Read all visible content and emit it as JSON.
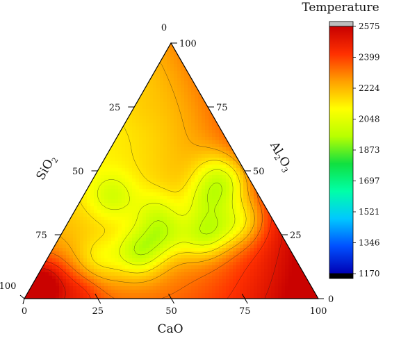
{
  "chart_data": {
    "type": "ternary-contour",
    "colorbar": {
      "title": "Temperature",
      "ticks": [
        "2575",
        "2399",
        "2224",
        "2048",
        "1873",
        "1697",
        "1521",
        "1346",
        "1170"
      ],
      "min": 1170,
      "max": 2575,
      "over_color": "#bdbdbd",
      "under_color": "#000000",
      "stops": [
        "#0000b4",
        "#0050ff",
        "#00c8ff",
        "#00ffa8",
        "#10e040",
        "#b8ff00",
        "#ffff00",
        "#ffa000",
        "#ff3000",
        "#c80000"
      ]
    },
    "axes": {
      "bottom": {
        "title": "CaO",
        "ticks": [
          "0",
          "25",
          "50",
          "75",
          "100"
        ]
      },
      "left": {
        "title": "SiO",
        "subscript": "2",
        "ticks": [
          "0",
          "25",
          "50",
          "75",
          "100"
        ]
      },
      "right": {
        "title": "Al",
        "sub1": "2",
        "mid": "O",
        "sub2": "3",
        "ticks": [
          "0",
          "25",
          "50",
          "75",
          "100"
        ]
      }
    },
    "peaks": [
      {
        "cao": 10,
        "sio2": 50,
        "al2o3": 40,
        "value": -150
      },
      {
        "cao": 18,
        "sio2": 67,
        "al2o3": 15,
        "value": -120
      },
      {
        "cao": 30,
        "sio2": 52,
        "al2o3": 18,
        "value": -240
      },
      {
        "cao": 35,
        "sio2": 40,
        "al2o3": 25,
        "value": -180
      },
      {
        "cao": 28,
        "sio2": 38,
        "al2o3": 34,
        "value": -120
      },
      {
        "cao": 48,
        "sio2": 28,
        "al2o3": 24,
        "value": -170
      },
      {
        "cao": 51,
        "sio2": 22,
        "al2o3": 27,
        "value": -140
      },
      {
        "cao": 42,
        "sio2": 20,
        "al2o3": 38,
        "value": -120
      },
      {
        "cao": 45,
        "sio2": 14,
        "al2o3": 41,
        "value": -130
      },
      {
        "cao": 40,
        "sio2": 10,
        "al2o3": 50,
        "value": -120
      },
      {
        "cao": 48,
        "sio2": 6,
        "al2o3": 46,
        "value": -140
      },
      {
        "cao": 60,
        "sio2": 8,
        "al2o3": 32,
        "value": -120
      },
      {
        "cao": 58,
        "sio2": 14,
        "al2o3": 28,
        "value": -120
      },
      {
        "cao": 4,
        "sio2": 88,
        "al2o3": 8,
        "value": 140
      },
      {
        "cao": 1,
        "sio2": 97,
        "al2o3": 2,
        "value": 300
      },
      {
        "cao": 18,
        "sio2": 80,
        "al2o3": 2,
        "value": 110
      },
      {
        "cao": 0,
        "sio2": 25,
        "al2o3": 75,
        "value": 20
      }
    ]
  }
}
